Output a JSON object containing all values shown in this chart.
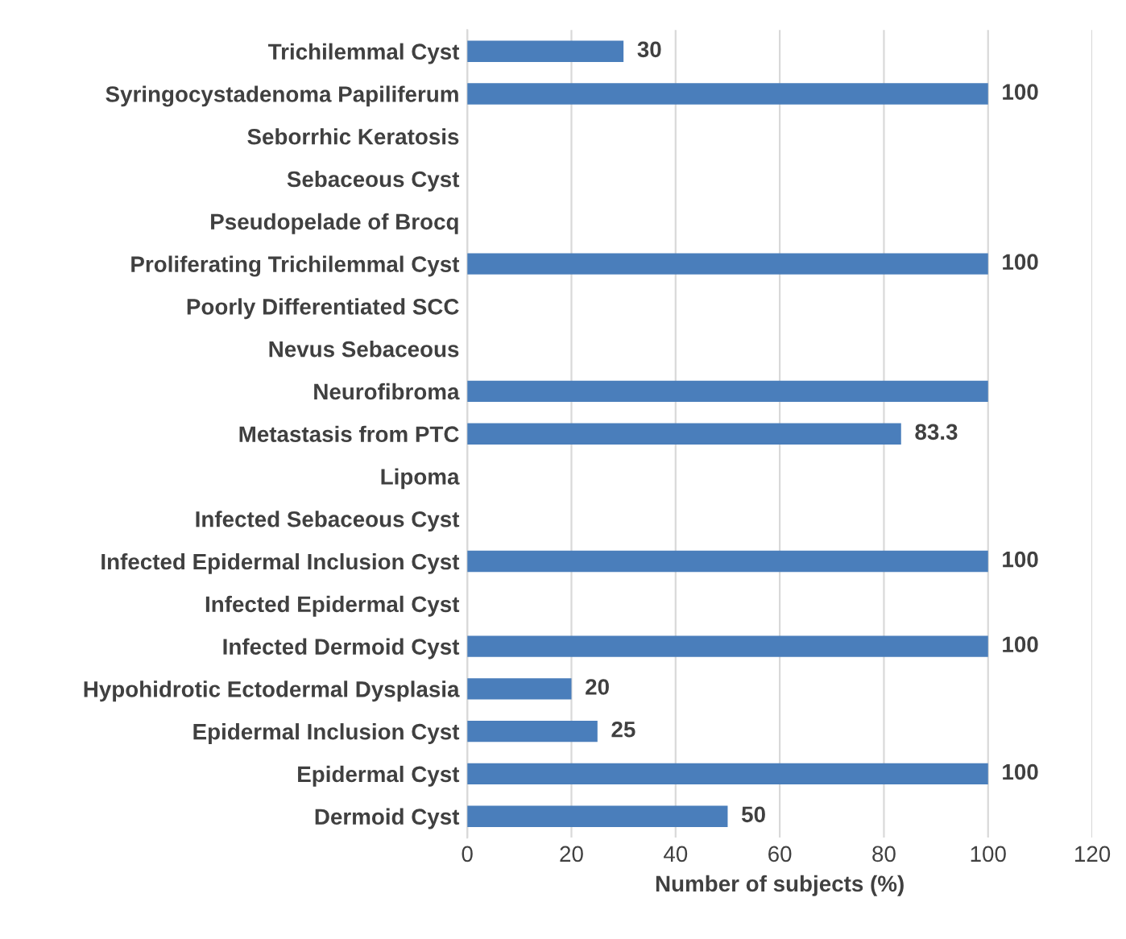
{
  "chart_data": {
    "type": "bar",
    "orientation": "horizontal",
    "xlabel": "Number of subjects (%)",
    "categories": [
      "Trichilemmal Cyst",
      "Syringocystadenoma Papiliferum",
      "Seborrhic Keratosis",
      "Sebaceous Cyst",
      "Pseudopelade of Brocq",
      "Proliferating Trichilemmal Cyst",
      "Poorly Differentiated SCC",
      "Nevus Sebaceous",
      "Neurofibroma",
      "Metastasis from PTC",
      "Lipoma",
      "Infected Sebaceous Cyst",
      "Infected Epidermal Inclusion Cyst",
      "Infected Epidermal Cyst",
      "Infected Dermoid Cyst",
      "Hypohidrotic Ectodermal Dysplasia",
      "Epidermal Inclusion Cyst",
      "Epidermal Cyst",
      "Dermoid Cyst"
    ],
    "values": [
      30,
      100,
      null,
      null,
      null,
      100,
      null,
      null,
      100,
      83.3,
      null,
      null,
      100,
      null,
      100,
      20,
      25,
      100,
      50
    ],
    "value_labels": [
      "30",
      "100",
      null,
      null,
      null,
      "100",
      null,
      null,
      null,
      "83.3",
      null,
      null,
      "100",
      null,
      "100",
      "20",
      "25",
      "100",
      "50"
    ],
    "color": "#4a7ebb",
    "xlim": [
      0,
      120
    ],
    "xticks": [
      0,
      20,
      40,
      60,
      80,
      100,
      120
    ],
    "grid": "x",
    "legend": false
  }
}
